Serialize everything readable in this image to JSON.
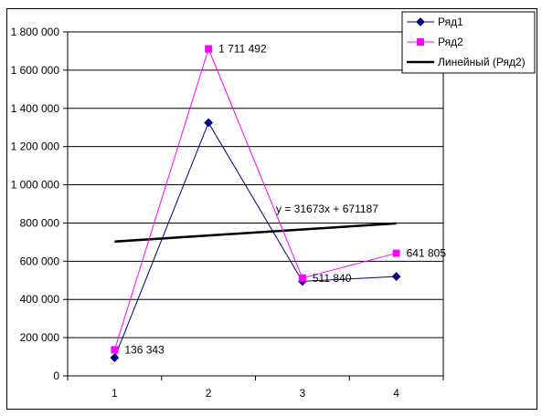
{
  "chart_data": {
    "type": "line",
    "categories": [
      "1",
      "2",
      "3",
      "4"
    ],
    "ylim": [
      0,
      1800000
    ],
    "y_ticks": [
      0,
      200000,
      400000,
      600000,
      800000,
      1000000,
      1200000,
      1400000,
      1600000,
      1800000
    ],
    "y_tick_labels": [
      "0",
      "200 000",
      "400 000",
      "600 000",
      "800 000",
      "1 000 000",
      "1 200 000",
      "1 400 000",
      "1 600 000",
      "1 800 000"
    ],
    "grid": true,
    "legend_position": "top-right",
    "series": [
      {
        "name": "Ряд1",
        "values": [
          95000,
          1325000,
          495000,
          520000
        ],
        "color": "#000080",
        "marker": "diamond"
      },
      {
        "name": "Ряд2",
        "values": [
          136343,
          1711492,
          511840,
          641805
        ],
        "color": "#ff00ff",
        "marker": "square"
      }
    ],
    "trendline": {
      "name": "Линейный (Ряд2)",
      "color": "#000000",
      "slope": 31673,
      "intercept": 671187,
      "equation": "y = 31673x + 671187"
    },
    "data_labels": [
      {
        "series": 1,
        "index": 0,
        "text": "136 343"
      },
      {
        "series": 1,
        "index": 1,
        "text": "1 711 492"
      },
      {
        "series": 1,
        "index": 2,
        "text": "511 840"
      },
      {
        "series": 1,
        "index": 3,
        "text": "641 805"
      }
    ]
  }
}
